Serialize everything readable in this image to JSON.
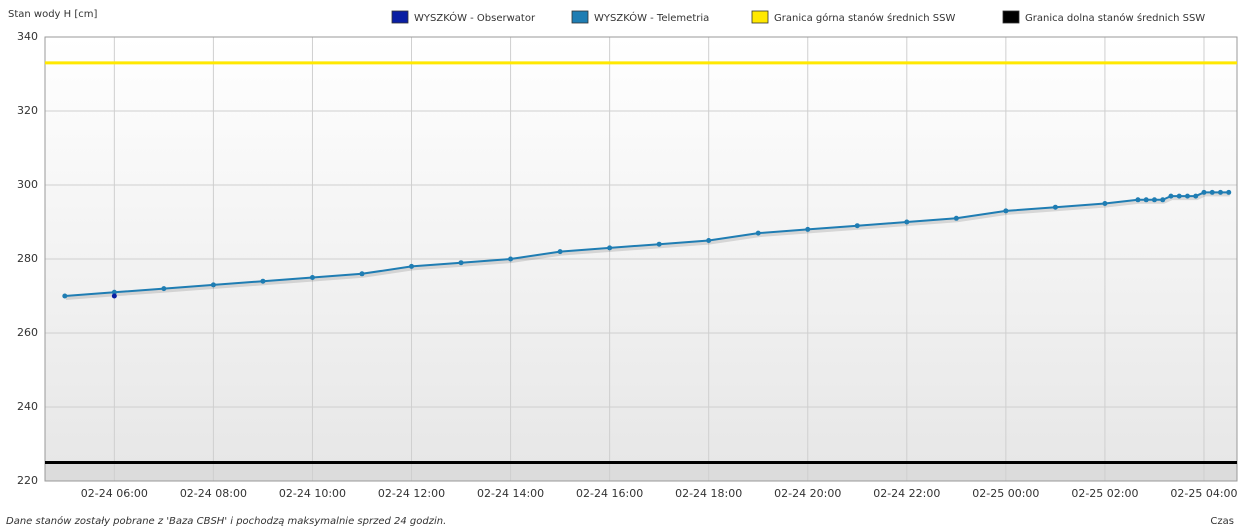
{
  "chart_data": {
    "type": "line",
    "y_label": "Stan wody H [cm]",
    "x_label": "Czas",
    "footnote": "Dane stanów zostały pobrane z 'Baza CBSH' i pochodzą maksymalnie sprzed 24 godzin.",
    "ylim": [
      220,
      340
    ],
    "yticks": [
      220,
      240,
      260,
      280,
      300,
      320,
      340
    ],
    "xlim": [
      "02-24 04:36",
      "02-25 04:40"
    ],
    "xticks": [
      "02-24 06:00",
      "02-24 08:00",
      "02-24 10:00",
      "02-24 12:00",
      "02-24 14:00",
      "02-24 16:00",
      "02-24 18:00",
      "02-24 20:00",
      "02-24 22:00",
      "02-25 00:00",
      "02-25 02:00",
      "02-25 04:00"
    ],
    "grid": true,
    "series": [
      {
        "name": "WYSZKÓW - Obserwator",
        "color": "#0a1fa3",
        "x": [
          "02-24 06:00"
        ],
        "values": [
          270
        ]
      },
      {
        "name": "WYSZKÓW - Telemetria",
        "color": "#1f7db3",
        "x": [
          "02-24 05:00",
          "02-24 06:00",
          "02-24 07:00",
          "02-24 08:00",
          "02-24 09:00",
          "02-24 10:00",
          "02-24 11:00",
          "02-24 12:00",
          "02-24 13:00",
          "02-24 14:00",
          "02-24 15:00",
          "02-24 16:00",
          "02-24 17:00",
          "02-24 18:00",
          "02-24 19:00",
          "02-24 20:00",
          "02-24 21:00",
          "02-24 22:00",
          "02-24 23:00",
          "02-25 00:00",
          "02-25 01:00",
          "02-25 02:00",
          "02-25 02:40",
          "02-25 02:50",
          "02-25 03:00",
          "02-25 03:10",
          "02-25 03:20",
          "02-25 03:30",
          "02-25 03:40",
          "02-25 03:50",
          "02-25 04:00",
          "02-25 04:10",
          "02-25 04:20",
          "02-25 04:30"
        ],
        "values": [
          270,
          271,
          272,
          273,
          274,
          275,
          276,
          278,
          279,
          280,
          282,
          283,
          284,
          285,
          287,
          288,
          289,
          290,
          291,
          293,
          294,
          295,
          296,
          296,
          296,
          296,
          297,
          297,
          297,
          297,
          298,
          298,
          298,
          298
        ]
      }
    ],
    "reference_lines": [
      {
        "name": "Granica górna stanów średnich SSW",
        "color": "#ffe800",
        "value": 333
      },
      {
        "name": "Granica dolna stanów średnich SSW",
        "color": "#000000",
        "value": 225
      }
    ]
  }
}
